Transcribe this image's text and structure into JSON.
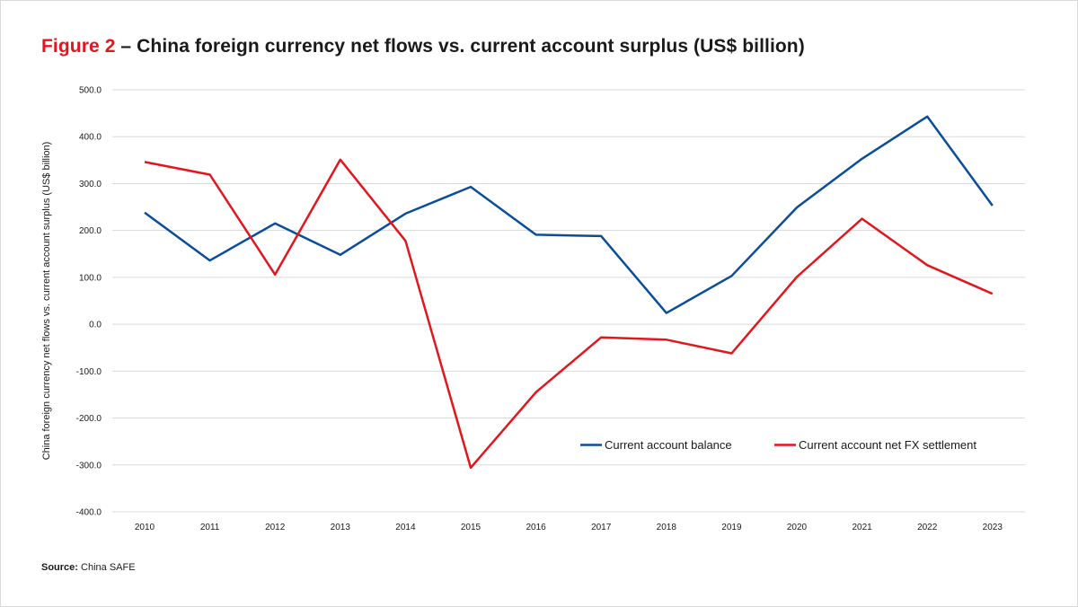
{
  "title_prefix": "Figure 2",
  "title_text": " – China foreign currency net flows vs. current account surplus (US$ billion)",
  "source_label": "Source:",
  "source_text": " China SAFE",
  "chart_data": {
    "type": "line",
    "ylabel": "China foreign currency net flows vs. current account surplus (US$ billion)",
    "xlabel": "",
    "ylim": [
      -400,
      500
    ],
    "ytick_step": 100,
    "grid": true,
    "legend_position": "lower-right",
    "categories": [
      "2010",
      "2011",
      "2012",
      "2013",
      "2014",
      "2015",
      "2016",
      "2017",
      "2018",
      "2019",
      "2020",
      "2021",
      "2022",
      "2023"
    ],
    "series": [
      {
        "name": "Current account balance",
        "color": "#0a4d9c",
        "values": [
          238,
          136,
          215,
          148,
          236,
          293,
          191,
          188,
          24,
          103,
          249,
          353,
          443,
          253
        ]
      },
      {
        "name": "Current account net FX settlement",
        "color": "#e3161e",
        "values": [
          346,
          319,
          106,
          351,
          178,
          -306,
          -145,
          -28,
          -33,
          -62,
          101,
          225,
          126,
          65
        ]
      }
    ]
  }
}
